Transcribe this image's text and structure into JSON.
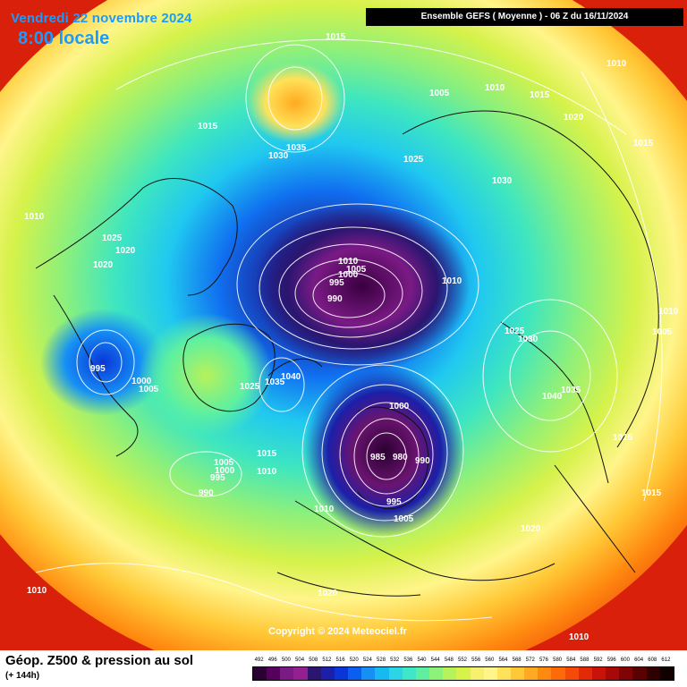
{
  "header": {
    "date": "Vendredi 22 novembre 2024",
    "time": "8:00 locale",
    "run": "Ensemble GEFS  ( Moyenne )  -  06 Z du 16/11/2024"
  },
  "copyright": "Copyright © 2024 Meteociel.fr",
  "footer": {
    "title": "Géop. Z500 & pression au sol",
    "subtitle": "(+ 144h)"
  },
  "legend": {
    "values": [
      "492",
      "496",
      "500",
      "504",
      "508",
      "512",
      "516",
      "520",
      "524",
      "528",
      "532",
      "536",
      "540",
      "544",
      "548",
      "552",
      "556",
      "560",
      "564",
      "568",
      "572",
      "576",
      "580",
      "584",
      "588",
      "592",
      "596",
      "600",
      "604",
      "608",
      "612"
    ],
    "colors": [
      "#2b0033",
      "#55005c",
      "#7a1a85",
      "#93208f",
      "#2a1670",
      "#1c1fa8",
      "#0a36d8",
      "#0a5ef0",
      "#1690f5",
      "#18b8f0",
      "#2ad6e6",
      "#3fe6c8",
      "#5ef0a0",
      "#8cf27a",
      "#b6f25a",
      "#d8f24a",
      "#f5f070",
      "#fff58a",
      "#ffe25a",
      "#ffc836",
      "#ffaa20",
      "#ff8a10",
      "#ff6a08",
      "#f54a08",
      "#e02a08",
      "#c81408",
      "#a80808",
      "#800404",
      "#5a0202",
      "#300000",
      "#100000"
    ]
  },
  "map": {
    "colors": {
      "ocean": "#d8200a",
      "coast": "#111111",
      "isobar": "#ffffff",
      "low_core": "#4a0d5a"
    },
    "isobar_labels": [
      "1015",
      "1010",
      "1005",
      "1010",
      "1015",
      "1020",
      "1015",
      "1035",
      "1030",
      "1025",
      "1015",
      "1025",
      "1020",
      "1020",
      "1030",
      "1010",
      "1005",
      "995",
      "1000",
      "990",
      "1010",
      "1025",
      "1030",
      "1010",
      "1005",
      "1040",
      "1035",
      "1015",
      "995",
      "1000",
      "1005",
      "1025",
      "1035",
      "1040",
      "1000",
      "985",
      "980",
      "990",
      "1015",
      "1005",
      "1000",
      "995",
      "1010",
      "990",
      "995",
      "1005",
      "1010",
      "1020",
      "1015",
      "1010",
      "1020",
      "1010",
      "1010"
    ]
  }
}
